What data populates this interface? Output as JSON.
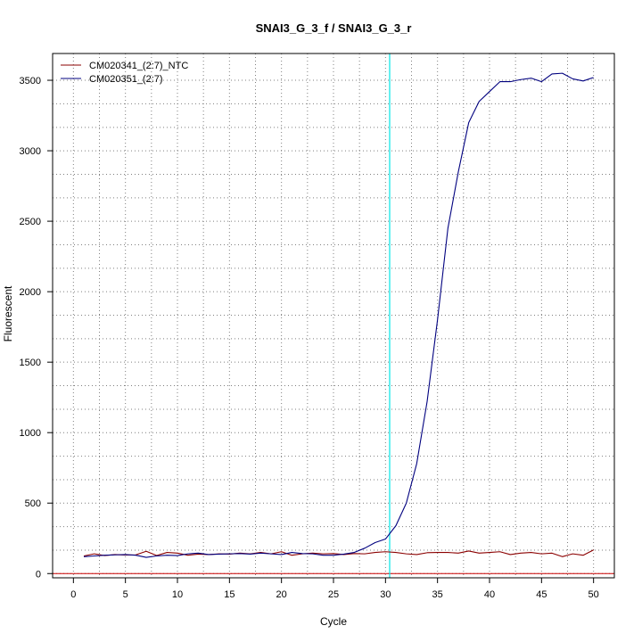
{
  "chart_data": {
    "type": "line",
    "title": "SNAI3_G_3_f / SNAI3_G_3_r",
    "xlabel": "Cycle",
    "ylabel": "Fluorescent",
    "xlim": [
      -2,
      52
    ],
    "ylim": [
      -30,
      3690
    ],
    "x_ticks": [
      0,
      5,
      10,
      15,
      20,
      25,
      30,
      35,
      40,
      45,
      50
    ],
    "y_ticks": [
      0,
      500,
      1000,
      1500,
      2000,
      2500,
      3000,
      3500
    ],
    "x_grid": [
      2.5,
      7.5,
      12.5,
      17.5,
      22.5,
      27.5,
      32.5,
      37.5,
      42.5,
      47.5
    ],
    "y_grid": [
      166,
      333,
      666,
      833,
      1166,
      1333,
      1666,
      1833,
      2166,
      2333,
      2666,
      2833,
      3166,
      3333
    ],
    "grid": true,
    "threshold_x": 30.4,
    "baseline_y": 0,
    "legend_position": "top-left",
    "colors": {
      "threshold": "#00e5e5",
      "baseline": "#cc0000"
    },
    "x": [
      1,
      2,
      3,
      4,
      5,
      6,
      7,
      8,
      9,
      10,
      11,
      12,
      13,
      14,
      15,
      16,
      17,
      18,
      19,
      20,
      21,
      22,
      23,
      24,
      25,
      26,
      27,
      28,
      29,
      30,
      31,
      32,
      33,
      34,
      35,
      36,
      37,
      38,
      39,
      40,
      41,
      42,
      43,
      44,
      45,
      46,
      47,
      48,
      49,
      50
    ],
    "series": [
      {
        "name": "CM020341_(2:7)_NTC",
        "color": "#8b0000",
        "values": [
          125,
          140,
          128,
          135,
          132,
          133,
          158,
          128,
          150,
          145,
          130,
          138,
          135,
          140,
          138,
          145,
          140,
          150,
          140,
          155,
          130,
          140,
          145,
          140,
          142,
          135,
          142,
          140,
          150,
          155,
          150,
          140,
          135,
          148,
          150,
          150,
          145,
          160,
          145,
          150,
          155,
          135,
          145,
          150,
          140,
          145,
          120,
          140,
          130,
          168
        ]
      },
      {
        "name": "CM020351_(2:7)",
        "color": "#00007f",
        "values": [
          120,
          125,
          130,
          133,
          135,
          130,
          115,
          125,
          130,
          128,
          140,
          145,
          135,
          138,
          140,
          142,
          138,
          145,
          140,
          135,
          150,
          142,
          140,
          130,
          130,
          138,
          150,
          180,
          220,
          245,
          340,
          500,
          780,
          1220,
          1800,
          2450,
          2850,
          3200,
          3350,
          3420,
          3490,
          3490,
          3505,
          3515,
          3490,
          3545,
          3550,
          3510,
          3495,
          3520
        ]
      }
    ]
  }
}
